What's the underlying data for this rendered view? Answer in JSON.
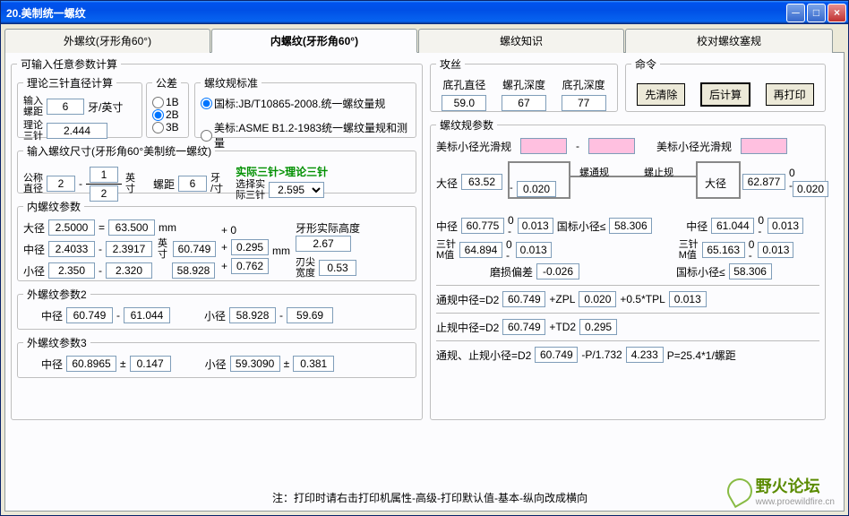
{
  "window": {
    "title": "20.美制统一螺纹"
  },
  "tabs": [
    "外螺纹(牙形角60°)",
    "内螺纹(牙形角60°)",
    "螺纹知识",
    "校对螺纹塞规"
  ],
  "fs_main": {
    "legend": "可输入任意参数计算"
  },
  "fs_calc": {
    "legend": "理论三针直径计算",
    "l1": "输入\n螺距",
    "v1": "6",
    "u1": "牙/英寸",
    "l2": "理论\n三针",
    "v2": "2.444"
  },
  "fs_tol": {
    "legend": "公差",
    "r1": "1B",
    "r2": "2B",
    "r3": "3B"
  },
  "fs_std": {
    "legend": "螺纹规标准",
    "r1": "国标:JB/T10865-2008.统一螺纹量规",
    "r2": "美标:ASME B1.2-1983统一螺纹量规和测量"
  },
  "fs_size": {
    "legend": "输入螺纹尺寸(牙形角60°美制统一螺纹)",
    "l1": "公称\n直径",
    "v1a": "2",
    "v1b": "1",
    "v1c": "2",
    "u1": "英\n寸",
    "l2": "螺距",
    "v2": "6",
    "u2": "牙\n/寸",
    "note": "实际三针>理论三针",
    "l3": "选择实\n际三针",
    "v3": "2.595"
  },
  "fs_int": {
    "legend": "内螺纹参数",
    "r1l": "大径",
    "r1a": "2.5000",
    "r1b": "63.500",
    "r1u": "mm",
    "r2l": "中径",
    "r2a": "2.4033",
    "r2b": "2.3917",
    "r2c": "60.749",
    "r3l": "小径",
    "r3a": "2.350",
    "r3b": "2.320",
    "r3c": "58.928",
    "mid": "英\n寸",
    "p0": "+ 0",
    "p1": "0.295",
    "p2": "0.762",
    "mm": "mm",
    "h_l": "牙形实际高度",
    "h_v": "2.67",
    "w_l": "刃尖\n宽度",
    "w_v": "0.53"
  },
  "fs_ext2": {
    "legend": "外螺纹参数2",
    "l1": "中径",
    "v1a": "60.749",
    "v1b": "61.044",
    "l2": "小径",
    "v2a": "58.928",
    "v2b": "59.69"
  },
  "fs_ext3": {
    "legend": "外螺纹参数3",
    "l1": "中径",
    "v1a": "60.8965",
    "v1b": "0.147",
    "l2": "小径",
    "v2a": "59.3090",
    "v2b": "0.381"
  },
  "fs_tap": {
    "legend": "攻丝",
    "c1": "底孔直径",
    "c2": "螺孔深度",
    "c3": "底孔深度",
    "v1": "59.0",
    "v2": "67",
    "v3": "77"
  },
  "fs_cmd": {
    "legend": "命令",
    "b1": "先清除",
    "b2": "后计算",
    "b3": "再打印"
  },
  "fs_param": {
    "legend": "螺纹规参数",
    "t1": "美标小径光滑规",
    "t1p": "",
    "t2": "美标小径光滑规",
    "t2p": "",
    "daj_l": "大径",
    "daj_v": "63.52",
    "daj_tol": "0.020",
    "mid1": "螺通规",
    "mid2": "螺止规",
    "daj2_l": "大径",
    "daj2_v": "62.877",
    "daj2_tol": "0.020",
    "zj_l": "中径",
    "zj_v": "60.775",
    "zj_t": "0.013",
    "gx": "国标小径≤",
    "gx_v": "58.306",
    "sz_l": "三针\nM值",
    "sz_v": "64.894",
    "sz_t": "0.013",
    "ms_l": "磨损偏差",
    "ms_v": "-0.026",
    "zj2_l": "中径",
    "zj2_v": "61.044",
    "zj2_t": "0.013",
    "sz2_v": "65.163",
    "sz2_t": "0.013",
    "gx2": "国标小径≤",
    "gx2_v": "58.306",
    "tg": "通规中径=D2",
    "tg_v1": "60.749",
    "tg_l2": "+ZPL",
    "tg_v2": "0.020",
    "tg_l3": "+0.5*TPL",
    "tg_v3": "0.013",
    "zg": "止规中径=D2",
    "zg_v1": "60.749",
    "zg_l2": "+TD2",
    "zg_v2": "0.295",
    "tzx": "通规、止规小径=D2",
    "tzx_v1": "60.749",
    "tzx_l2": "-P/1.732",
    "tzx_v2": "4.233",
    "tzx_l3": "P=25.4*1/螺距"
  },
  "footer": "注：打印时请右击打印机属性-高级-打印默认值-基本-纵向改成横向",
  "logo": {
    "text": "野火论坛",
    "url": "www.proewildfire.cn"
  }
}
